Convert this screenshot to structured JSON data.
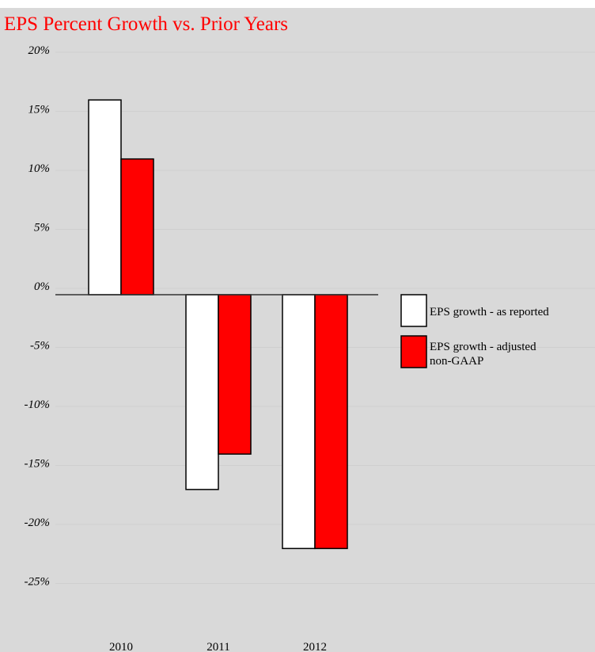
{
  "chart_data": {
    "type": "bar",
    "title": "EPS Percent Growth vs. Prior Years",
    "categories": [
      "2010",
      "2011",
      "2012"
    ],
    "series": [
      {
        "name": "EPS growth - as reported",
        "values": [
          16.5,
          -16.5,
          -21.5
        ]
      },
      {
        "name": "EPS growth - adjusted non-GAAP",
        "values": [
          11.5,
          -13.5,
          -21.5
        ]
      }
    ],
    "ylim": [
      -25,
      20
    ],
    "yticks": [
      20,
      15,
      10,
      5,
      0,
      -5,
      -10,
      -15,
      -20,
      -25
    ],
    "ytick_labels": [
      "20%",
      "15%",
      "10%",
      "5%",
      "0%",
      "-5%",
      "-10%",
      "-15%",
      "-20%",
      "-25%"
    ],
    "xlabel": "",
    "ylabel": "",
    "legend_position": "right",
    "grid": true,
    "colors": {
      "as_reported": "#ffffff",
      "adjusted": "#ff0000",
      "background": "#d9d9d9",
      "title": "#ff0000"
    }
  }
}
